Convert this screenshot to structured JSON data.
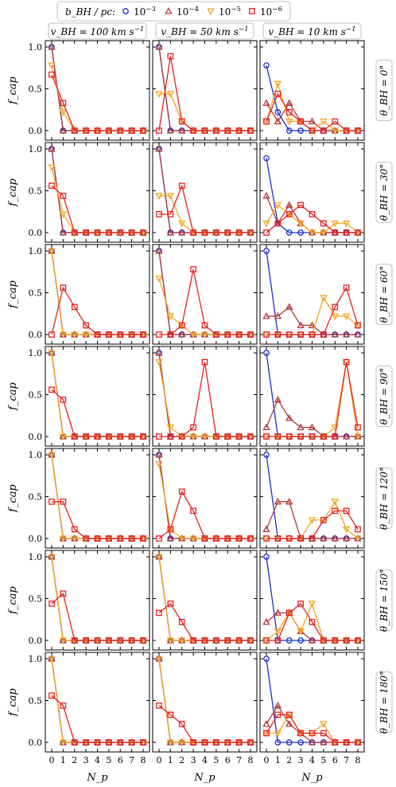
{
  "legend": {
    "title": "b_BH / pc:",
    "entries": [
      {
        "label": "10^-3",
        "color": "#1f2ecc",
        "marker": "circle"
      },
      {
        "label": "10^-4",
        "color": "#b03a3a",
        "marker": "triangle-up"
      },
      {
        "label": "10^-5",
        "color": "#f5a623",
        "marker": "triangle-down"
      },
      {
        "label": "10^-6",
        "color": "#e8201e",
        "marker": "square"
      }
    ]
  },
  "column_headers": [
    "v_BH = 100 km s^-1",
    "v_BH = 50 km s^-1",
    "v_BH = 10 km s^-1"
  ],
  "row_labels": [
    "θ_BH = 0°",
    "θ_BH = 30°",
    "θ_BH = 60°",
    "θ_BH = 90°",
    "θ_BH = 120°",
    "θ_BH = 150°",
    "θ_BH = 180°"
  ],
  "axes": {
    "ylabel": "f_cap",
    "xlabel": "N_p",
    "yticks": [
      "0.0",
      "0.5",
      "1.0"
    ],
    "xticks": [
      "0",
      "1",
      "2",
      "3",
      "4",
      "5",
      "6",
      "7",
      "8"
    ]
  },
  "chart_data": {
    "type": "line",
    "x": [
      0,
      1,
      2,
      3,
      4,
      5,
      6,
      7,
      8
    ],
    "ylim": [
      0,
      1
    ],
    "series_names": [
      "10^-3",
      "10^-4",
      "10^-5",
      "10^-6"
    ],
    "panels": [
      [
        [
          [
            1,
            0,
            0,
            0,
            0,
            0,
            0,
            0,
            0
          ],
          [
            1,
            0,
            0,
            0,
            0,
            0,
            0,
            0,
            0
          ],
          [
            0.78,
            0.22,
            0,
            0,
            0,
            0,
            0,
            0,
            0
          ],
          [
            0.67,
            0.33,
            0,
            0,
            0,
            0,
            0,
            0,
            0
          ]
        ],
        [
          [
            1,
            0,
            0,
            0,
            0,
            0,
            0,
            0,
            0
          ],
          [
            1,
            0,
            0,
            0,
            0,
            0,
            0,
            0,
            0
          ],
          [
            0.44,
            0.44,
            0.11,
            0,
            0,
            0,
            0,
            0,
            0
          ],
          [
            0,
            0.89,
            0.11,
            0,
            0,
            0,
            0,
            0,
            0
          ]
        ],
        [
          [
            0.78,
            0.22,
            0,
            0,
            0,
            0,
            0,
            0,
            0
          ],
          [
            0.33,
            0.11,
            0.33,
            0.11,
            0.11,
            0,
            0,
            0,
            0
          ],
          [
            0.11,
            0.56,
            0.11,
            0.11,
            0,
            0.11,
            0,
            0,
            0
          ],
          [
            0.11,
            0.44,
            0.22,
            0.11,
            0,
            0,
            0.11,
            0,
            0
          ]
        ]
      ],
      [
        [
          [
            1,
            0,
            0,
            0,
            0,
            0,
            0,
            0,
            0
          ],
          [
            1,
            0,
            0,
            0,
            0,
            0,
            0,
            0,
            0
          ],
          [
            0.78,
            0.22,
            0,
            0,
            0,
            0,
            0,
            0,
            0
          ],
          [
            0.56,
            0.44,
            0,
            0,
            0,
            0,
            0,
            0,
            0
          ]
        ],
        [
          [
            1,
            0,
            0,
            0,
            0,
            0,
            0,
            0,
            0
          ],
          [
            1,
            0,
            0,
            0,
            0,
            0,
            0,
            0,
            0
          ],
          [
            0.44,
            0.44,
            0.11,
            0,
            0,
            0,
            0,
            0,
            0
          ],
          [
            0.22,
            0.22,
            0.56,
            0,
            0,
            0,
            0,
            0,
            0
          ]
        ],
        [
          [
            0.89,
            0.11,
            0,
            0,
            0,
            0,
            0,
            0,
            0
          ],
          [
            0.44,
            0.11,
            0.33,
            0.11,
            0,
            0,
            0,
            0,
            0
          ],
          [
            0.11,
            0.33,
            0.22,
            0.11,
            0,
            0,
            0.11,
            0.11,
            0
          ],
          [
            0,
            0.11,
            0.22,
            0.33,
            0.22,
            0.11,
            0,
            0,
            0
          ]
        ]
      ],
      [
        [
          [
            1,
            0,
            0,
            0,
            0,
            0,
            0,
            0,
            0
          ],
          [
            1,
            0,
            0,
            0,
            0,
            0,
            0,
            0,
            0
          ],
          [
            1,
            0,
            0,
            0,
            0,
            0,
            0,
            0,
            0
          ],
          [
            0,
            0.56,
            0.33,
            0.11,
            0,
            0,
            0,
            0,
            0
          ]
        ],
        [
          [
            1,
            0,
            0,
            0,
            0,
            0,
            0,
            0,
            0
          ],
          [
            1,
            0,
            0,
            0,
            0,
            0,
            0,
            0,
            0
          ],
          [
            0.67,
            0.22,
            0.11,
            0,
            0,
            0,
            0,
            0,
            0
          ],
          [
            0,
            0,
            0.11,
            0.78,
            0.11,
            0,
            0,
            0,
            0
          ]
        ],
        [
          [
            1,
            0,
            0,
            0,
            0,
            0,
            0,
            0,
            0
          ],
          [
            0.22,
            0.22,
            0.33,
            0.11,
            0.11,
            0,
            0,
            0,
            0
          ],
          [
            0,
            0,
            0,
            0,
            0,
            0.44,
            0.22,
            0.22,
            0.11
          ],
          [
            0,
            0,
            0,
            0,
            0,
            0,
            0.33,
            0.56,
            0.11
          ]
        ]
      ],
      [
        [
          [
            1,
            0,
            0,
            0,
            0,
            0,
            0,
            0,
            0
          ],
          [
            1,
            0,
            0,
            0,
            0,
            0,
            0,
            0,
            0
          ],
          [
            1,
            0,
            0,
            0,
            0,
            0,
            0,
            0,
            0
          ],
          [
            0.56,
            0.44,
            0,
            0,
            0,
            0,
            0,
            0,
            0
          ]
        ],
        [
          [
            1,
            0,
            0,
            0,
            0,
            0,
            0,
            0,
            0
          ],
          [
            1,
            0,
            0,
            0,
            0,
            0,
            0,
            0,
            0
          ],
          [
            0.89,
            0.11,
            0,
            0,
            0,
            0,
            0,
            0,
            0
          ],
          [
            0,
            0,
            0,
            0.11,
            0.89,
            0,
            0,
            0,
            0
          ]
        ],
        [
          [
            1,
            0,
            0,
            0,
            0,
            0,
            0,
            0,
            0
          ],
          [
            0.11,
            0.44,
            0.22,
            0.11,
            0.11,
            0,
            0,
            0,
            0
          ],
          [
            0,
            0,
            0,
            0,
            0,
            0,
            0.11,
            0.89,
            0
          ],
          [
            0,
            0,
            0,
            0,
            0,
            0,
            0,
            0.89,
            0.11
          ]
        ]
      ],
      [
        [
          [
            1,
            0,
            0,
            0,
            0,
            0,
            0,
            0,
            0
          ],
          [
            1,
            0,
            0,
            0,
            0,
            0,
            0,
            0,
            0
          ],
          [
            1,
            0,
            0,
            0,
            0,
            0,
            0,
            0,
            0
          ],
          [
            0.44,
            0.44,
            0.11,
            0,
            0,
            0,
            0,
            0,
            0
          ]
        ],
        [
          [
            1,
            0,
            0,
            0,
            0,
            0,
            0,
            0,
            0
          ],
          [
            1,
            0,
            0,
            0,
            0,
            0,
            0,
            0,
            0
          ],
          [
            0.89,
            0.11,
            0,
            0,
            0,
            0,
            0,
            0,
            0
          ],
          [
            0,
            0.11,
            0.56,
            0.33,
            0,
            0,
            0,
            0,
            0
          ]
        ],
        [
          [
            1,
            0,
            0,
            0,
            0,
            0,
            0,
            0,
            0
          ],
          [
            0.11,
            0.44,
            0.44,
            0,
            0,
            0,
            0,
            0,
            0
          ],
          [
            0,
            0,
            0,
            0,
            0.22,
            0.22,
            0.44,
            0.11,
            0
          ],
          [
            0,
            0,
            0,
            0,
            0,
            0.22,
            0.33,
            0.33,
            0.11
          ]
        ]
      ],
      [
        [
          [
            1,
            0,
            0,
            0,
            0,
            0,
            0,
            0,
            0
          ],
          [
            1,
            0,
            0,
            0,
            0,
            0,
            0,
            0,
            0
          ],
          [
            1,
            0,
            0,
            0,
            0,
            0,
            0,
            0,
            0
          ],
          [
            0.44,
            0.56,
            0,
            0,
            0,
            0,
            0,
            0,
            0
          ]
        ],
        [
          [
            1,
            0,
            0,
            0,
            0,
            0,
            0,
            0,
            0
          ],
          [
            1,
            0,
            0,
            0,
            0,
            0,
            0,
            0,
            0
          ],
          [
            1,
            0,
            0,
            0,
            0,
            0,
            0,
            0,
            0
          ],
          [
            0.33,
            0.44,
            0.22,
            0,
            0,
            0,
            0,
            0,
            0
          ]
        ],
        [
          [
            1,
            0,
            0,
            0,
            0,
            0,
            0,
            0,
            0
          ],
          [
            0.22,
            0.33,
            0.33,
            0.11,
            0,
            0,
            0,
            0,
            0
          ],
          [
            0,
            0.11,
            0.33,
            0.11,
            0.44,
            0,
            0,
            0,
            0
          ],
          [
            0,
            0,
            0.33,
            0.44,
            0.22,
            0,
            0,
            0,
            0
          ]
        ]
      ],
      [
        [
          [
            1,
            0,
            0,
            0,
            0,
            0,
            0,
            0,
            0
          ],
          [
            1,
            0,
            0,
            0,
            0,
            0,
            0,
            0,
            0
          ],
          [
            1,
            0,
            0,
            0,
            0,
            0,
            0,
            0,
            0
          ],
          [
            0.56,
            0.44,
            0,
            0,
            0,
            0,
            0,
            0,
            0
          ]
        ],
        [
          [
            1,
            0,
            0,
            0,
            0,
            0,
            0,
            0,
            0
          ],
          [
            1,
            0,
            0,
            0,
            0,
            0,
            0,
            0,
            0
          ],
          [
            1,
            0,
            0,
            0,
            0,
            0,
            0,
            0,
            0
          ],
          [
            0.44,
            0.33,
            0.22,
            0,
            0,
            0,
            0,
            0,
            0
          ]
        ],
        [
          [
            1,
            0,
            0,
            0,
            0,
            0,
            0,
            0,
            0
          ],
          [
            0.22,
            0.44,
            0.22,
            0.11,
            0,
            0,
            0,
            0,
            0
          ],
          [
            0.11,
            0.11,
            0.33,
            0.11,
            0.11,
            0.22,
            0,
            0,
            0
          ],
          [
            0.11,
            0.33,
            0.33,
            0.11,
            0.11,
            0.11,
            0,
            0,
            0
          ]
        ]
      ]
    ]
  }
}
